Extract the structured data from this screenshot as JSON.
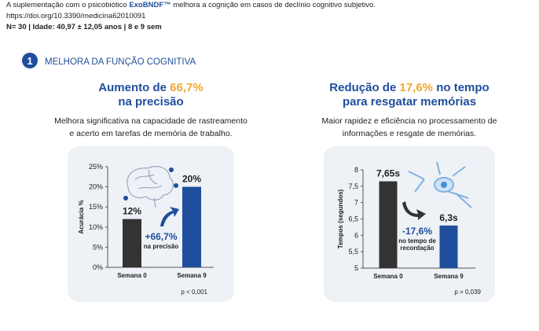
{
  "header": {
    "intro_before": "A suplementação com o psicobiótico",
    "product": "ExoBNDF™",
    "intro_after": "melhora a cognição em casos de declínio cognitivo subjetivo.",
    "doi": "https://doi.org/10.3390/medicina62010091",
    "sample": "N= 30 | Idade: 40,97 ± 12,05 anos | 8 e 9 sem"
  },
  "section": {
    "number": "1",
    "title": "MELHORA DA FUNÇÃO COGNITIVA"
  },
  "panels": [
    {
      "headline": [
        "Aumento de",
        "66,7%"
      ],
      "headline_line2": "na precisão",
      "description": [
        "Melhora significativa na capacidade de rastreamento",
        "e acerto em tarefas de memória de trabalho."
      ]
    },
    {
      "headline": [
        "Redução de",
        "17,6%",
        "no tempo"
      ],
      "headline_line2": "para resgatar memórias",
      "description": [
        "Maior rapidez e eficiência no processamento de",
        "informações e resgate de memórias."
      ]
    }
  ],
  "chart_data": [
    {
      "type": "bar",
      "y_label": "Acurácia %",
      "categories": [
        "Semana 0",
        "Semana 9"
      ],
      "values": [
        12,
        20
      ],
      "value_labels": [
        "12%",
        "20%"
      ],
      "colors": [
        "#333333",
        "#1f4e9c"
      ],
      "ylim": [
        0,
        25
      ],
      "yticks": [
        {
          "value": 0,
          "label": "0%"
        },
        {
          "value": 5,
          "label": "5%"
        },
        {
          "value": 10,
          "label": "10%"
        },
        {
          "value": 15,
          "label": "15%"
        },
        {
          "value": 20,
          "label": "20%"
        },
        {
          "value": 25,
          "label": "25%"
        }
      ],
      "annotation": [
        "+66,7%",
        "na precisão"
      ],
      "note": "p < 0,001"
    },
    {
      "type": "bar",
      "y_label": "Tempos (segundos)",
      "categories": [
        "Semana 0",
        "Semana 9"
      ],
      "values": [
        7.65,
        6.3
      ],
      "value_labels": [
        "7,65s",
        "6,3s"
      ],
      "colors": [
        "#333333",
        "#1f4e9c"
      ],
      "ylim": [
        5,
        8
      ],
      "yticks": [
        5,
        {
          "value": 5.5,
          "label": "5,5"
        },
        6,
        {
          "value": 6.5,
          "label": "6,5"
        },
        7,
        {
          "value": 7.5,
          "label": "7,5"
        },
        8
      ],
      "annotation": [
        "-17,6%",
        "no tempo de",
        "recordação"
      ],
      "note": "p = 0,039"
    }
  ]
}
